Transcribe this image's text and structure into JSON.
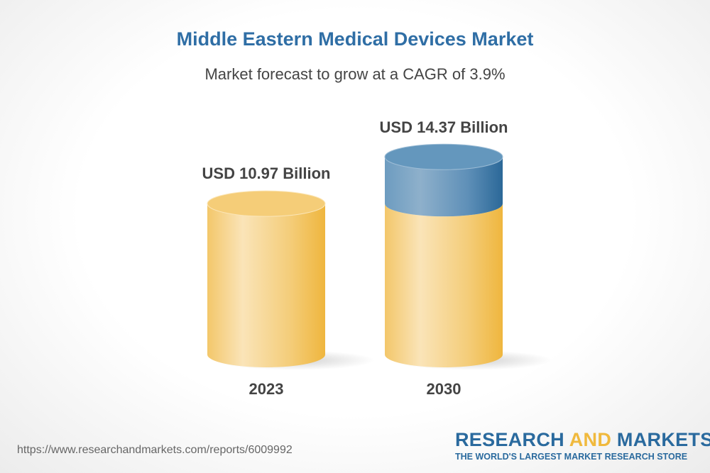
{
  "title": "Middle Eastern Medical Devices Market",
  "subtitle": "Market forecast to grow at a CAGR of 3.9%",
  "chart_data": {
    "type": "bar",
    "style": "3d-cylinder",
    "categories": [
      "2023",
      "2030"
    ],
    "values": [
      10.97,
      14.37
    ],
    "data_labels": [
      "USD 10.97 Billion",
      "USD 14.37 Billion"
    ],
    "unit": "USD Billion",
    "cagr": "3.9%",
    "colors": {
      "base": "#f2bd4a",
      "growth": "#2d6a9c"
    }
  },
  "footer": {
    "url": "https://www.researchandmarkets.com/reports/6009992",
    "logo_part1": "RESEARCH ",
    "logo_part2": "AND",
    "logo_part3": " MARKETS",
    "logo_tagline": "THE WORLD'S LARGEST MARKET RESEARCH STORE"
  }
}
